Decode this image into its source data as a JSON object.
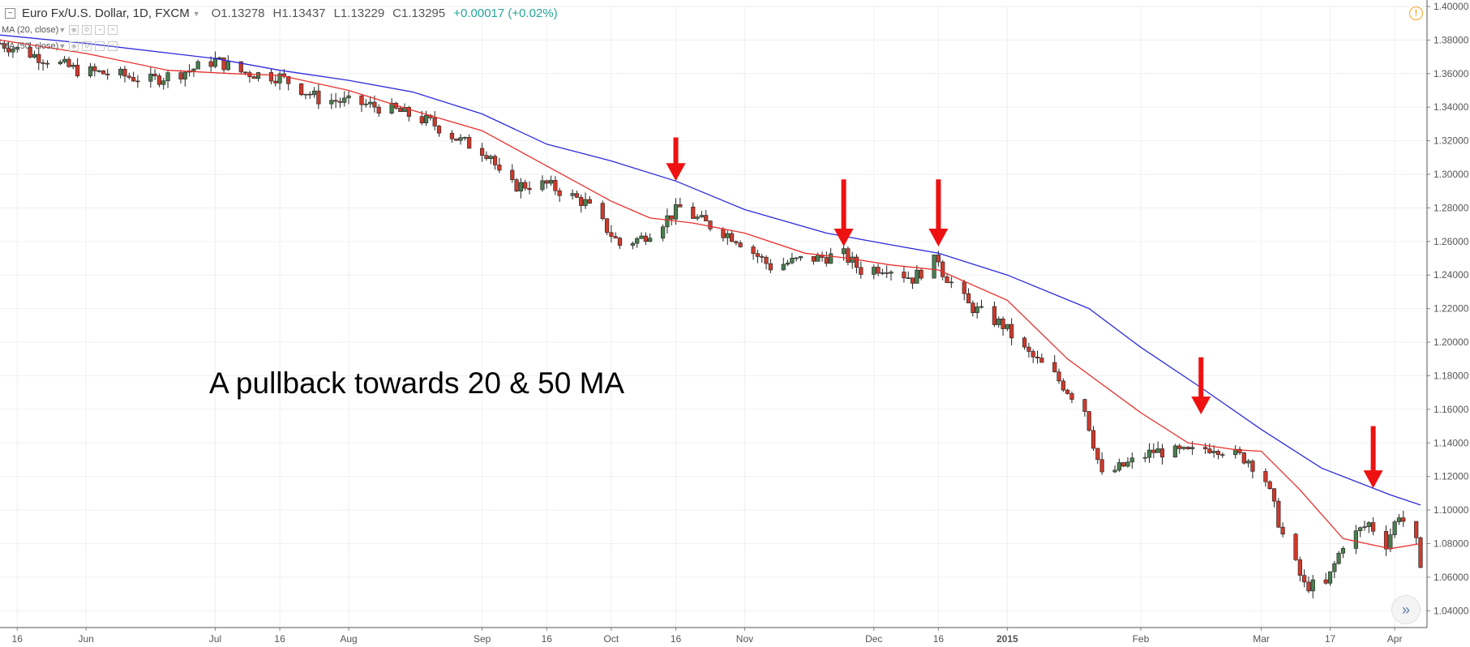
{
  "header": {
    "symbol_title": "Euro Fx/U.S. Dollar, 1D, FXCM",
    "open": "O1.13278",
    "high": "H1.13437",
    "low": "L1.13229",
    "close": "C1.13295",
    "change": "+0.00017 (+0.02%)",
    "collapse_icon": "collapse-square-icon"
  },
  "indicators": [
    {
      "label": "MA (20, close)",
      "color": "#e8302c"
    },
    {
      "label": "MA (50, close)",
      "color": "#2b2bdc"
    }
  ],
  "annotation_text": "A pullback towards 20 & 50 MA",
  "icons": {
    "warning": "warning-circle-icon",
    "navigate": "double-chevron-right-icon"
  },
  "chart_data": {
    "type": "candlestick",
    "title": "Euro Fx/U.S. Dollar, 1D, FXCM",
    "xlabel": "",
    "ylabel": "",
    "ylim": [
      1.03,
      1.4
    ],
    "y_ticks": [
      "1.40000",
      "1.38000",
      "1.36000",
      "1.34000",
      "1.32000",
      "1.30000",
      "1.28000",
      "1.26000",
      "1.24000",
      "1.22000",
      "1.20000",
      "1.18000",
      "1.16000",
      "1.14000",
      "1.12000",
      "1.10000",
      "1.08000",
      "1.06000",
      "1.04000"
    ],
    "x_ticks": [
      {
        "label": "16",
        "date": "2014-05-16"
      },
      {
        "label": "Jun",
        "date": "2014-06-01"
      },
      {
        "label": "Jul",
        "date": "2014-07-01"
      },
      {
        "label": "16",
        "date": "2014-07-16"
      },
      {
        "label": "Aug",
        "date": "2014-08-01"
      },
      {
        "label": "Sep",
        "date": "2014-09-01"
      },
      {
        "label": "16",
        "date": "2014-09-16"
      },
      {
        "label": "Oct",
        "date": "2014-10-01"
      },
      {
        "label": "16",
        "date": "2014-10-16"
      },
      {
        "label": "Nov",
        "date": "2014-11-01"
      },
      {
        "label": "Dec",
        "date": "2014-12-01"
      },
      {
        "label": "16",
        "date": "2014-12-16"
      },
      {
        "label": "2015",
        "date": "2015-01-01",
        "bold": true
      },
      {
        "label": "Feb",
        "date": "2015-02-01"
      },
      {
        "label": "Mar",
        "date": "2015-03-01"
      },
      {
        "label": "17",
        "date": "2015-03-17"
      },
      {
        "label": "Apr",
        "date": "2015-04-01"
      }
    ],
    "x_range": [
      "2014-05-12",
      "2015-04-07"
    ],
    "close_path": [
      [
        "2014-05-12",
        1.378
      ],
      [
        "2014-05-20",
        1.371
      ],
      [
        "2014-05-30",
        1.362
      ],
      [
        "2014-06-09",
        1.359
      ],
      [
        "2014-06-16",
        1.356
      ],
      [
        "2014-06-25",
        1.362
      ],
      [
        "2014-07-01",
        1.368
      ],
      [
        "2014-07-07",
        1.361
      ],
      [
        "2014-07-16",
        1.358
      ],
      [
        "2014-07-25",
        1.345
      ],
      [
        "2014-08-04",
        1.342
      ],
      [
        "2014-08-12",
        1.338
      ],
      [
        "2014-08-20",
        1.331
      ],
      [
        "2014-08-27",
        1.32
      ],
      [
        "2014-09-03",
        1.312
      ],
      [
        "2014-09-06",
        1.293
      ],
      [
        "2014-09-16",
        1.294
      ],
      [
        "2014-09-25",
        1.283
      ],
      [
        "2014-10-03",
        1.258
      ],
      [
        "2014-10-08",
        1.262
      ],
      [
        "2014-10-17",
        1.28
      ],
      [
        "2014-10-22",
        1.272
      ],
      [
        "2014-10-30",
        1.262
      ],
      [
        "2014-11-07",
        1.245
      ],
      [
        "2014-11-14",
        1.249
      ],
      [
        "2014-11-24",
        1.252
      ],
      [
        "2014-11-28",
        1.243
      ],
      [
        "2014-12-04",
        1.245
      ],
      [
        "2014-12-10",
        1.238
      ],
      [
        "2014-12-16",
        1.25
      ],
      [
        "2014-12-17",
        1.242
      ],
      [
        "2014-12-23",
        1.222
      ],
      [
        "2014-12-31",
        1.21
      ],
      [
        "2015-01-05",
        1.195
      ],
      [
        "2015-01-12",
        1.18
      ],
      [
        "2015-01-19",
        1.16
      ],
      [
        "2015-01-23",
        1.12
      ],
      [
        "2015-01-27",
        1.125
      ],
      [
        "2015-02-04",
        1.135
      ],
      [
        "2015-02-12",
        1.134
      ],
      [
        "2015-02-18",
        1.138
      ],
      [
        "2015-02-26",
        1.13
      ],
      [
        "2015-03-02",
        1.118
      ],
      [
        "2015-03-06",
        1.085
      ],
      [
        "2015-03-11",
        1.055
      ],
      [
        "2015-03-16",
        1.055
      ],
      [
        "2015-03-20",
        1.08
      ],
      [
        "2015-03-26",
        1.092
      ],
      [
        "2015-03-30",
        1.08
      ],
      [
        "2015-04-02",
        1.098
      ],
      [
        "2015-04-06",
        1.08
      ],
      [
        "2015-04-07",
        1.062
      ]
    ],
    "series": [
      {
        "name": "MA (20, close)",
        "color": "#e8302c",
        "points": [
          [
            "2014-05-12",
            1.38
          ],
          [
            "2014-06-01",
            1.372
          ],
          [
            "2014-06-20",
            1.362
          ],
          [
            "2014-07-05",
            1.36
          ],
          [
            "2014-07-16",
            1.359
          ],
          [
            "2014-08-01",
            1.35
          ],
          [
            "2014-08-16",
            1.338
          ],
          [
            "2014-09-01",
            1.326
          ],
          [
            "2014-09-16",
            1.305
          ],
          [
            "2014-10-01",
            1.284
          ],
          [
            "2014-10-10",
            1.274
          ],
          [
            "2014-10-20",
            1.271
          ],
          [
            "2014-11-01",
            1.265
          ],
          [
            "2014-11-15",
            1.253
          ],
          [
            "2014-11-25",
            1.25
          ],
          [
            "2014-12-05",
            1.246
          ],
          [
            "2014-12-16",
            1.243
          ],
          [
            "2015-01-01",
            1.225
          ],
          [
            "2015-01-15",
            1.19
          ],
          [
            "2015-02-01",
            1.158
          ],
          [
            "2015-02-12",
            1.14
          ],
          [
            "2015-02-23",
            1.136
          ],
          [
            "2015-03-01",
            1.135
          ],
          [
            "2015-03-10",
            1.112
          ],
          [
            "2015-03-20",
            1.083
          ],
          [
            "2015-03-31",
            1.077
          ],
          [
            "2015-04-07",
            1.08
          ]
        ]
      },
      {
        "name": "MA (50, close)",
        "color": "#2b2bdc",
        "points": [
          [
            "2014-05-12",
            1.383
          ],
          [
            "2014-06-01",
            1.378
          ],
          [
            "2014-07-01",
            1.369
          ],
          [
            "2014-07-16",
            1.362
          ],
          [
            "2014-08-01",
            1.356
          ],
          [
            "2014-08-16",
            1.349
          ],
          [
            "2014-09-01",
            1.336
          ],
          [
            "2014-09-16",
            1.318
          ],
          [
            "2014-10-01",
            1.308
          ],
          [
            "2014-10-16",
            1.296
          ],
          [
            "2014-11-01",
            1.279
          ],
          [
            "2014-11-20",
            1.265
          ],
          [
            "2014-12-05",
            1.258
          ],
          [
            "2014-12-16",
            1.253
          ],
          [
            "2015-01-01",
            1.24
          ],
          [
            "2015-01-20",
            1.22
          ],
          [
            "2015-02-01",
            1.197
          ],
          [
            "2015-02-15",
            1.173
          ],
          [
            "2015-03-01",
            1.148
          ],
          [
            "2015-03-15",
            1.125
          ],
          [
            "2015-03-31",
            1.109
          ],
          [
            "2015-04-07",
            1.103
          ]
        ]
      }
    ],
    "arrows": [
      {
        "date": "2014-10-16",
        "top": 1.322,
        "tip": 1.296
      },
      {
        "date": "2014-11-24",
        "top": 1.297,
        "tip": 1.257
      },
      {
        "date": "2014-12-16",
        "top": 1.297,
        "tip": 1.257
      },
      {
        "date": "2015-02-15",
        "top": 1.191,
        "tip": 1.157
      },
      {
        "date": "2015-03-27",
        "top": 1.15,
        "tip": 1.113
      }
    ],
    "candle_colors": {
      "up": "#5a9f62",
      "down": "#d93c2e",
      "up_fill": "#4a7d4f",
      "down_fill": "#cc3a2c"
    },
    "grid": true,
    "legend": "top-left",
    "arrow_color": "#ee1111"
  }
}
